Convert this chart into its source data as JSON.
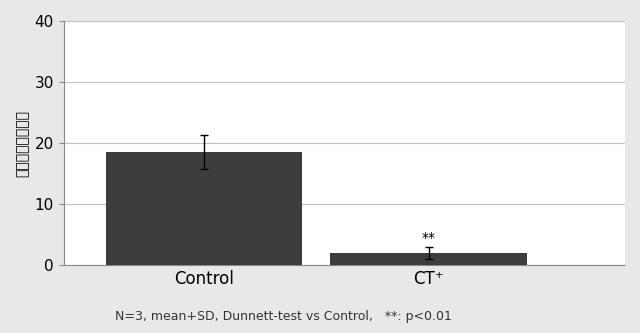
{
  "categories": [
    "Control",
    "CT⁺"
  ],
  "values": [
    18.5,
    2.0
  ],
  "errors": [
    2.8,
    1.0
  ],
  "bar_color": "#3d3d3d",
  "bar_width": 0.35,
  "x_positions": [
    0.25,
    0.65
  ],
  "xlim": [
    0.0,
    1.0
  ],
  "ylim": [
    0,
    40
  ],
  "yticks": [
    0,
    10,
    20,
    30,
    40
  ],
  "ylabel": "表皮面積率（％）",
  "footnote": "N=3, mean+SD, Dunnett-test vs Control,   **: p<0.01",
  "significance": [
    "",
    "**"
  ],
  "background_color": "#e8e8e8",
  "plot_bg_color": "#ffffff",
  "grid_color": "#c0c0c0",
  "ylabel_fontsize": 10,
  "tick_fontsize": 11,
  "footnote_fontsize": 9,
  "sig_fontsize": 10,
  "xtick_fontsize": 12
}
